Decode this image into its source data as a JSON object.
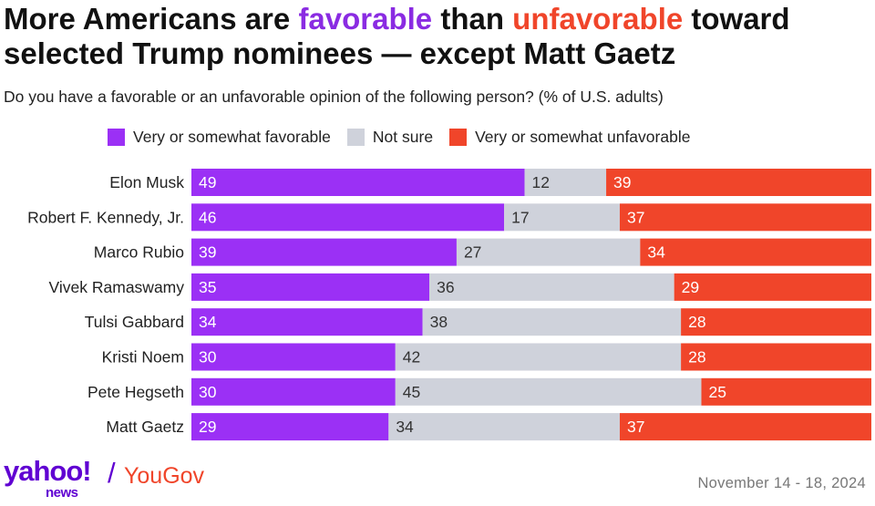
{
  "header": {
    "title_part1": "More Americans are ",
    "title_fav": "favorable",
    "title_part2": " than ",
    "title_unf": "unfavorable",
    "title_part3": " toward selected Trump nominees — except Matt Gaetz",
    "subtitle": "Do you have a favorable or an unfavorable opinion of the following person? (% of U.S. adults)"
  },
  "legend": [
    {
      "label": "Very or somewhat favorable",
      "color": "#9b30f5"
    },
    {
      "label": "Not sure",
      "color": "#cfd2db"
    },
    {
      "label": "Very or somewhat unfavorable",
      "color": "#f0452a"
    }
  ],
  "chart_data": {
    "type": "bar",
    "orientation": "horizontal",
    "stacked": true,
    "title": "More Americans are favorable than unfavorable toward selected Trump nominees — except Matt Gaetz",
    "categories": [
      "Elon Musk",
      "Robert F. Kennedy, Jr.",
      "Marco Rubio",
      "Vivek Ramaswamy",
      "Tulsi Gabbard",
      "Kristi Noem",
      "Pete Hegseth",
      "Matt Gaetz"
    ],
    "series": [
      {
        "name": "Very or somewhat favorable",
        "color": "#9b30f5",
        "values": [
          49,
          46,
          39,
          35,
          34,
          30,
          30,
          29
        ]
      },
      {
        "name": "Not sure",
        "color": "#cfd2db",
        "values": [
          12,
          17,
          27,
          36,
          38,
          42,
          45,
          34
        ]
      },
      {
        "name": "Very or somewhat unfavorable",
        "color": "#f0452a",
        "values": [
          39,
          37,
          34,
          29,
          28,
          28,
          25,
          37
        ]
      }
    ],
    "xlim": [
      0,
      100
    ],
    "grid": false,
    "legend_position": "top"
  },
  "footer": {
    "brand_yahoo": "yahoo!",
    "brand_news": "news",
    "brand_slash": "/",
    "brand_yougov": "YouGov",
    "date": "November 14 - 18, 2024"
  }
}
